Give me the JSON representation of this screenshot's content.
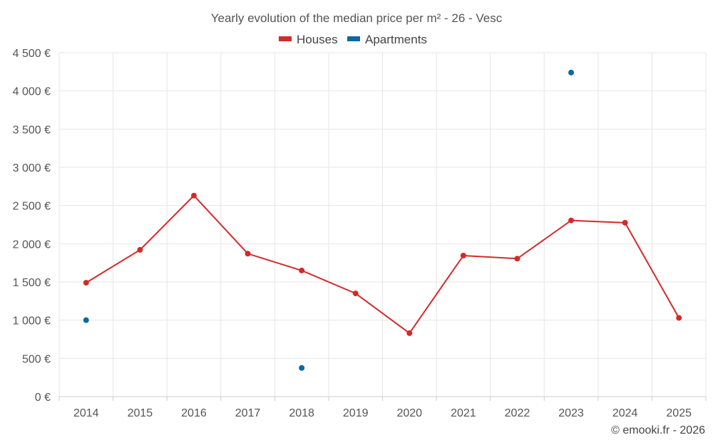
{
  "chart_data": {
    "type": "line",
    "title": "Yearly evolution of the median price per m² - 26 - Vesc",
    "categories": [
      "2014",
      "2015",
      "2016",
      "2017",
      "2018",
      "2019",
      "2020",
      "2021",
      "2022",
      "2023",
      "2024",
      "2025"
    ],
    "series": [
      {
        "name": "Houses",
        "color": "#d32a2a",
        "mode": "line",
        "values": [
          1490,
          1920,
          2630,
          1870,
          1650,
          1350,
          830,
          1845,
          1805,
          2305,
          2275,
          1030
        ]
      },
      {
        "name": "Apartments",
        "color": "#0b69a3",
        "mode": "markers",
        "values": [
          1000,
          null,
          null,
          null,
          375,
          null,
          null,
          null,
          null,
          4240,
          null,
          null
        ]
      }
    ],
    "ylim": [
      0,
      4500
    ],
    "yticks": [
      0,
      500,
      1000,
      1500,
      2000,
      2500,
      3000,
      3500,
      4000,
      4500
    ],
    "ytick_labels": [
      "0 €",
      "500 €",
      "1 000 €",
      "1 500 €",
      "2 000 €",
      "2 500 €",
      "3 000 €",
      "3 500 €",
      "4 000 €",
      "4 500 €"
    ],
    "legend_position": "top-center",
    "credit": "© emooki.fr - 2026"
  }
}
